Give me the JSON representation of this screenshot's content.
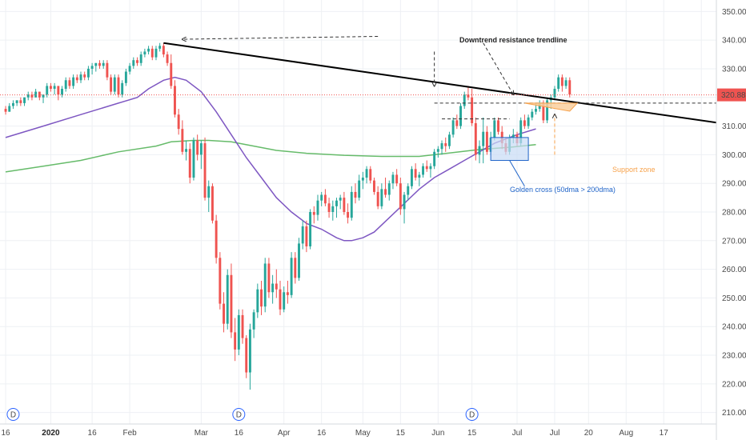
{
  "chart_data": {
    "type": "candlestick",
    "price_axis": {
      "ticks": [
        "350.00",
        "340.00",
        "330.00",
        "320.00",
        "310.00",
        "300.00",
        "290.00",
        "280.00",
        "270.00",
        "260.00",
        "250.00",
        "240.00",
        "230.00",
        "220.00",
        "210.00"
      ],
      "ylim": [
        206,
        354
      ]
    },
    "time_axis": {
      "labels": [
        {
          "t": "16",
          "x": 0,
          "bold": false
        },
        {
          "t": "2020",
          "x": 12,
          "bold": true
        },
        {
          "t": "16",
          "x": 23,
          "bold": false
        },
        {
          "t": "Feb",
          "x": 33,
          "bold": false
        },
        {
          "t": "Mar",
          "x": 52,
          "bold": false
        },
        {
          "t": "16",
          "x": 62,
          "bold": false
        },
        {
          "t": "Apr",
          "x": 74,
          "bold": false
        },
        {
          "t": "16",
          "x": 84,
          "bold": false
        },
        {
          "t": "May",
          "x": 95,
          "bold": false
        },
        {
          "t": "15",
          "x": 105,
          "bold": false
        },
        {
          "t": "Jun",
          "x": 115,
          "bold": false
        },
        {
          "t": "15",
          "x": 124,
          "bold": false
        },
        {
          "t": "Jul",
          "x": 136,
          "bold": false
        },
        {
          "t": "Jul",
          "x": 146,
          "bold": false
        },
        {
          "t": "20",
          "x": 155,
          "bold": false
        },
        {
          "t": "Aug",
          "x": 165,
          "bold": false
        },
        {
          "t": "17",
          "x": 175,
          "bold": false
        },
        {
          "t": "",
          "x": 185,
          "bold": false
        }
      ],
      "xlim": [
        -1.5,
        189
      ]
    },
    "last_price": {
      "label": "320.88",
      "value": 320.88,
      "color": "#ef5350"
    },
    "colors": {
      "up": "#26a69a",
      "down": "#ef5350",
      "ma50": "#7e57c2",
      "ma200": "#66bb6a",
      "trend": "#000000",
      "support": "#f7a24b",
      "cross": "#1e63c8"
    },
    "candles": [
      [
        316,
        317,
        314,
        315
      ],
      [
        315,
        318,
        315,
        317
      ],
      [
        317,
        319,
        316,
        318
      ],
      [
        318,
        319,
        317,
        319
      ],
      [
        319,
        320,
        317,
        318
      ],
      [
        318,
        320,
        317,
        320
      ],
      [
        320,
        322,
        319,
        321
      ],
      [
        321,
        322,
        319,
        320
      ],
      [
        320,
        323,
        320,
        322
      ],
      [
        322,
        322,
        319,
        320
      ],
      [
        320,
        321,
        318,
        321
      ],
      [
        321,
        325,
        320,
        324
      ],
      [
        324,
        325,
        322,
        323
      ],
      [
        323,
        325,
        321,
        324
      ],
      [
        324,
        324,
        319,
        321
      ],
      [
        321,
        324,
        320,
        323
      ],
      [
        323,
        327,
        322,
        326
      ],
      [
        326,
        327,
        323,
        324
      ],
      [
        324,
        328,
        323,
        327
      ],
      [
        327,
        328,
        325,
        326
      ],
      [
        326,
        329,
        325,
        328
      ],
      [
        328,
        329,
        326,
        327
      ],
      [
        327,
        331,
        326,
        330
      ],
      [
        330,
        332,
        328,
        331
      ],
      [
        331,
        332,
        329,
        332
      ],
      [
        332,
        333,
        330,
        331
      ],
      [
        331,
        333,
        330,
        332
      ],
      [
        332,
        333,
        326,
        327
      ],
      [
        327,
        328,
        321,
        322
      ],
      [
        322,
        328,
        321,
        327
      ],
      [
        327,
        328,
        320,
        321
      ],
      [
        321,
        326,
        320,
        325
      ],
      [
        325,
        330,
        324,
        329
      ],
      [
        329,
        332,
        328,
        331
      ],
      [
        331,
        334,
        330,
        333
      ],
      [
        333,
        334,
        331,
        332
      ],
      [
        332,
        336,
        331,
        335
      ],
      [
        335,
        337,
        334,
        336
      ],
      [
        336,
        338,
        335,
        337
      ],
      [
        337,
        338,
        333,
        334
      ],
      [
        334,
        338,
        333,
        337
      ],
      [
        337,
        339,
        336,
        338
      ],
      [
        338,
        339,
        334,
        335
      ],
      [
        335,
        336,
        331,
        332
      ],
      [
        332,
        335,
        323,
        324
      ],
      [
        324,
        326,
        313,
        314
      ],
      [
        314,
        316,
        307,
        309
      ],
      [
        309,
        312,
        300,
        301
      ],
      [
        301,
        305,
        298,
        302
      ],
      [
        302,
        304,
        290,
        292
      ],
      [
        292,
        306,
        291,
        305
      ],
      [
        305,
        307,
        298,
        300
      ],
      [
        300,
        305,
        295,
        304
      ],
      [
        304,
        306,
        284,
        285
      ],
      [
        285,
        291,
        280,
        289
      ],
      [
        289,
        290,
        276,
        277
      ],
      [
        277,
        279,
        262,
        264
      ],
      [
        264,
        266,
        246,
        248
      ],
      [
        248,
        252,
        238,
        241
      ],
      [
        241,
        260,
        239,
        258
      ],
      [
        258,
        262,
        236,
        238
      ],
      [
        238,
        243,
        228,
        232
      ],
      [
        232,
        246,
        230,
        244
      ],
      [
        244,
        246,
        234,
        236
      ],
      [
        236,
        237,
        222,
        224
      ],
      [
        224,
        241,
        218,
        239
      ],
      [
        239,
        246,
        236,
        245
      ],
      [
        245,
        255,
        243,
        253
      ],
      [
        253,
        256,
        244,
        247
      ],
      [
        247,
        264,
        245,
        262
      ],
      [
        262,
        264,
        250,
        252
      ],
      [
        252,
        258,
        248,
        255
      ],
      [
        255,
        260,
        250,
        253
      ],
      [
        253,
        256,
        244,
        246
      ],
      [
        246,
        254,
        245,
        252
      ],
      [
        252,
        256,
        248,
        251
      ],
      [
        251,
        266,
        250,
        264
      ],
      [
        264,
        266,
        255,
        257
      ],
      [
        257,
        271,
        256,
        269
      ],
      [
        269,
        277,
        267,
        275
      ],
      [
        275,
        277,
        266,
        268
      ],
      [
        268,
        281,
        267,
        280
      ],
      [
        280,
        282,
        276,
        279
      ],
      [
        279,
        286,
        277,
        284
      ],
      [
        284,
        287,
        282,
        286
      ],
      [
        286,
        288,
        282,
        283
      ],
      [
        283,
        285,
        278,
        280
      ],
      [
        280,
        284,
        277,
        282
      ],
      [
        282,
        285,
        278,
        284
      ],
      [
        284,
        286,
        281,
        285
      ],
      [
        285,
        287,
        279,
        280
      ],
      [
        280,
        283,
        276,
        278
      ],
      [
        278,
        289,
        277,
        287
      ],
      [
        287,
        290,
        283,
        285
      ],
      [
        285,
        293,
        284,
        291
      ],
      [
        291,
        294,
        288,
        292
      ],
      [
        292,
        296,
        290,
        295
      ],
      [
        295,
        296,
        290,
        291
      ],
      [
        291,
        292,
        286,
        287
      ],
      [
        287,
        289,
        281,
        282
      ],
      [
        282,
        290,
        281,
        288
      ],
      [
        288,
        292,
        285,
        286
      ],
      [
        286,
        291,
        284,
        290
      ],
      [
        290,
        294,
        288,
        293
      ],
      [
        293,
        295,
        289,
        290
      ],
      [
        290,
        292,
        279,
        281
      ],
      [
        281,
        287,
        276,
        286
      ],
      [
        286,
        290,
        284,
        289
      ],
      [
        289,
        296,
        288,
        295
      ],
      [
        295,
        297,
        291,
        292
      ],
      [
        292,
        294,
        289,
        293
      ],
      [
        293,
        297,
        292,
        296
      ],
      [
        296,
        298,
        294,
        295
      ],
      [
        295,
        297,
        292,
        296
      ],
      [
        296,
        302,
        295,
        301
      ],
      [
        301,
        303,
        299,
        302
      ],
      [
        302,
        305,
        300,
        304
      ],
      [
        304,
        306,
        301,
        303
      ],
      [
        303,
        308,
        302,
        307
      ],
      [
        307,
        313,
        306,
        312
      ],
      [
        312,
        314,
        309,
        310
      ],
      [
        310,
        318,
        309,
        317
      ],
      [
        317,
        322,
        316,
        321
      ],
      [
        321,
        324,
        319,
        320
      ],
      [
        320,
        323,
        310,
        311
      ],
      [
        311,
        313,
        298,
        300
      ],
      [
        300,
        305,
        297,
        303
      ],
      [
        303,
        313,
        297,
        308
      ],
      [
        308,
        310,
        300,
        301
      ],
      [
        301,
        308,
        300,
        306
      ],
      [
        306,
        313,
        305,
        312
      ],
      [
        312,
        313,
        307,
        308
      ],
      [
        308,
        310,
        302,
        304
      ],
      [
        304,
        306,
        300,
        301
      ],
      [
        301,
        307,
        300,
        306
      ],
      [
        306,
        309,
        304,
        307
      ],
      [
        307,
        308,
        303,
        304
      ],
      [
        304,
        313,
        303,
        312
      ],
      [
        312,
        314,
        309,
        310
      ],
      [
        310,
        314,
        309,
        313
      ],
      [
        313,
        316,
        312,
        315
      ],
      [
        315,
        318,
        314,
        316
      ],
      [
        316,
        319,
        315,
        318
      ],
      [
        318,
        319,
        311,
        312
      ],
      [
        312,
        320,
        311,
        319
      ],
      [
        319,
        321,
        316,
        320
      ],
      [
        320,
        324,
        319,
        323
      ],
      [
        323,
        328,
        322,
        327
      ],
      [
        327,
        328,
        322,
        324
      ],
      [
        324,
        327,
        323,
        326
      ],
      [
        326,
        327,
        320,
        321
      ]
    ],
    "ma50": [
      [
        0,
        306
      ],
      [
        10,
        310
      ],
      [
        20,
        314
      ],
      [
        30,
        318
      ],
      [
        35,
        320
      ],
      [
        38,
        323
      ],
      [
        42,
        326
      ],
      [
        45,
        327
      ],
      [
        48,
        326
      ],
      [
        52,
        322
      ],
      [
        56,
        315
      ],
      [
        60,
        307
      ],
      [
        64,
        299
      ],
      [
        68,
        292
      ],
      [
        72,
        285
      ],
      [
        76,
        280
      ],
      [
        80,
        276
      ],
      [
        84,
        274
      ],
      [
        88,
        271
      ],
      [
        90,
        270
      ],
      [
        92,
        270
      ],
      [
        95,
        271
      ],
      [
        98,
        273
      ],
      [
        102,
        278
      ],
      [
        106,
        283
      ],
      [
        110,
        288
      ],
      [
        114,
        292
      ],
      [
        118,
        295
      ],
      [
        122,
        298
      ],
      [
        126,
        301
      ],
      [
        130,
        304
      ],
      [
        136,
        307
      ],
      [
        141,
        309
      ]
    ],
    "ma200": [
      [
        0,
        294
      ],
      [
        10,
        296
      ],
      [
        20,
        298
      ],
      [
        30,
        301
      ],
      [
        40,
        303
      ],
      [
        44,
        304.5
      ],
      [
        50,
        305
      ],
      [
        54,
        305
      ],
      [
        60,
        304.5
      ],
      [
        66,
        303
      ],
      [
        72,
        301.5
      ],
      [
        80,
        300.5
      ],
      [
        90,
        299.8
      ],
      [
        100,
        299.4
      ],
      [
        110,
        299.4
      ],
      [
        118,
        300.6
      ],
      [
        126,
        301.8
      ],
      [
        134,
        302.6
      ],
      [
        141,
        303.5
      ]
    ],
    "annotations": {
      "trendline_label": "Downtrend resistance trendline",
      "golden_cross_label": "Golden cross (50dma > 200dma)",
      "support_label": "Support zone"
    },
    "event_badges": [
      {
        "label": "D",
        "x": 2
      },
      {
        "label": "D",
        "x": 62
      },
      {
        "label": "D",
        "x": 124
      }
    ]
  }
}
